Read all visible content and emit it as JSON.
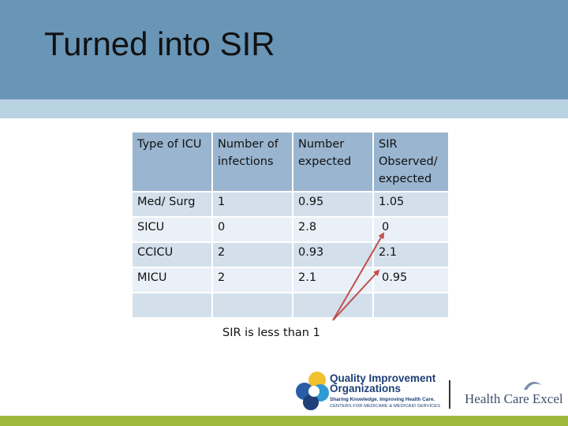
{
  "slide": {
    "title": "Turned into SIR",
    "note": "SIR   is less than 1"
  },
  "table": {
    "headers": [
      "Type of ICU",
      "Number of infections",
      "Number expected",
      "SIR Observed/ expected"
    ],
    "rows": [
      [
        "Med/ Surg",
        "1",
        "0.95",
        "1.05"
      ],
      [
        "SICU",
        "0",
        "2.8",
        "0"
      ],
      [
        "CCICU",
        "2",
        "0.93",
        "2.1"
      ],
      [
        "MICU",
        "2",
        "2.1",
        "0.95"
      ],
      [
        "",
        "",
        "",
        ""
      ]
    ]
  },
  "logos": {
    "qio_name": "Quality Improvement Organizations",
    "qio_tagline": "Sharing Knowledge. Improving Health Care.",
    "qio_cms": "CENTERS FOR MEDICARE & MEDICAID SERVICES",
    "hce_name": "Health Care Excel"
  },
  "colors": {
    "header": "#6995b7",
    "header_stripe": "#bad3e3",
    "table_header": "#9ab5cf",
    "row_dark": "#d3e0ec",
    "row_light": "#eaf0f7",
    "arrow": "#c0504d",
    "footer": "#9dba3c"
  }
}
